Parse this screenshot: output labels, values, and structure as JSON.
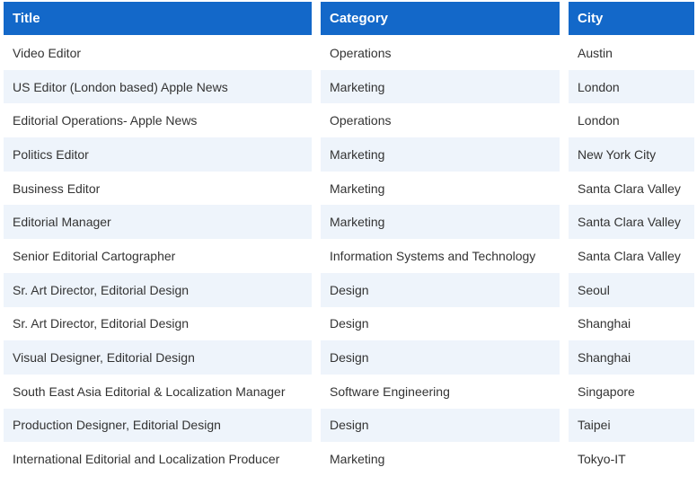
{
  "table": {
    "headers": [
      "Title",
      "Category",
      "City"
    ],
    "rows": [
      [
        "Video Editor",
        "Operations",
        "Austin"
      ],
      [
        "US Editor (London based) Apple News",
        "Marketing",
        "London"
      ],
      [
        "Editorial Operations- Apple News",
        "Operations",
        "London"
      ],
      [
        "Politics Editor",
        "Marketing",
        "New York City"
      ],
      [
        "Business Editor",
        "Marketing",
        "Santa Clara Valley"
      ],
      [
        "Editorial Manager",
        "Marketing",
        "Santa Clara Valley"
      ],
      [
        "Senior Editorial Cartographer",
        "Information Systems and Technology",
        "Santa Clara Valley"
      ],
      [
        "Sr. Art Director, Editorial Design",
        "Design",
        "Seoul"
      ],
      [
        "Sr. Art Director, Editorial Design",
        "Design",
        "Shanghai"
      ],
      [
        "Visual Designer, Editorial Design",
        "Design",
        "Shanghai"
      ],
      [
        "South East Asia Editorial & Localization Manager",
        "Software Engineering",
        "Singapore"
      ],
      [
        "Production Designer, Editorial Design",
        "Design",
        "Taipei"
      ],
      [
        "International Editorial and Localization Producer",
        "Marketing",
        "Tokyo-IT"
      ]
    ]
  },
  "colors": {
    "header_bg": "#1368c9",
    "header_text": "#ffffff",
    "row_alt_bg": "#eef4fb",
    "row_bg": "#ffffff",
    "cell_text": "#333333"
  }
}
